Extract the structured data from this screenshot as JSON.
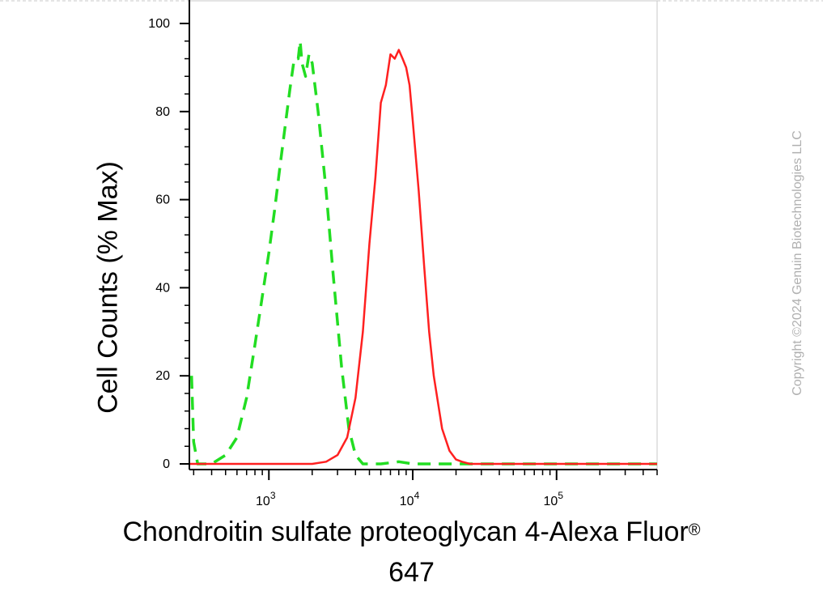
{
  "chart_data": {
    "type": "line",
    "title": "",
    "xlabel_main": "Chondroitin sulfate proteoglycan 4-Alexa Fluor",
    "xlabel_sup": "®",
    "xlabel_line2": "647",
    "ylabel": "Cell Counts (% Max)",
    "x_scale": "log",
    "xlim": [
      280,
      500000
    ],
    "ylim": [
      0,
      102
    ],
    "y_ticks": [
      "0",
      "20",
      "40",
      "60",
      "80",
      "100"
    ],
    "x_ticks": [
      {
        "base": "10",
        "exp": "3"
      },
      {
        "base": "10",
        "exp": "4"
      },
      {
        "base": "10",
        "exp": "5"
      }
    ],
    "grid": false,
    "series": [
      {
        "style": "dashed",
        "color": "#22dd22",
        "x": [
          290,
          300,
          320,
          400,
          500,
          600,
          700,
          800,
          900,
          1000,
          1100,
          1200,
          1400,
          1500,
          1600,
          1650,
          1700,
          1800,
          1900,
          2000,
          2200,
          2500,
          2800,
          3200,
          3600,
          4000,
          4500,
          5000,
          6000,
          8000,
          10000,
          20000,
          50000,
          100000,
          500000
        ],
        "y": [
          20,
          5,
          0,
          0,
          2,
          6,
          15,
          27,
          38,
          48,
          58,
          68,
          85,
          92,
          92,
          96,
          91,
          88,
          93,
          91,
          80,
          62,
          43,
          22,
          8,
          2,
          0,
          0,
          0,
          0.5,
          0,
          0,
          0,
          0,
          0
        ]
      },
      {
        "style": "solid",
        "color": "#ff2020",
        "x": [
          280,
          2000,
          2500,
          3000,
          3500,
          4000,
          4500,
          5000,
          5500,
          6000,
          6500,
          7000,
          7500,
          8000,
          8500,
          9000,
          9500,
          10000,
          11000,
          12000,
          13000,
          14000,
          16000,
          18000,
          20000,
          22000,
          25000,
          30000,
          100000,
          500000
        ],
        "y": [
          0,
          0,
          0.5,
          2,
          6,
          15,
          30,
          50,
          65,
          82,
          86,
          93,
          92,
          94,
          92,
          90,
          86,
          78,
          62,
          45,
          30,
          20,
          8,
          3,
          1,
          0.5,
          0,
          0,
          0,
          0
        ]
      }
    ]
  },
  "watermark": "Copyright ©2024 Genuin Biotechnologies LLC"
}
